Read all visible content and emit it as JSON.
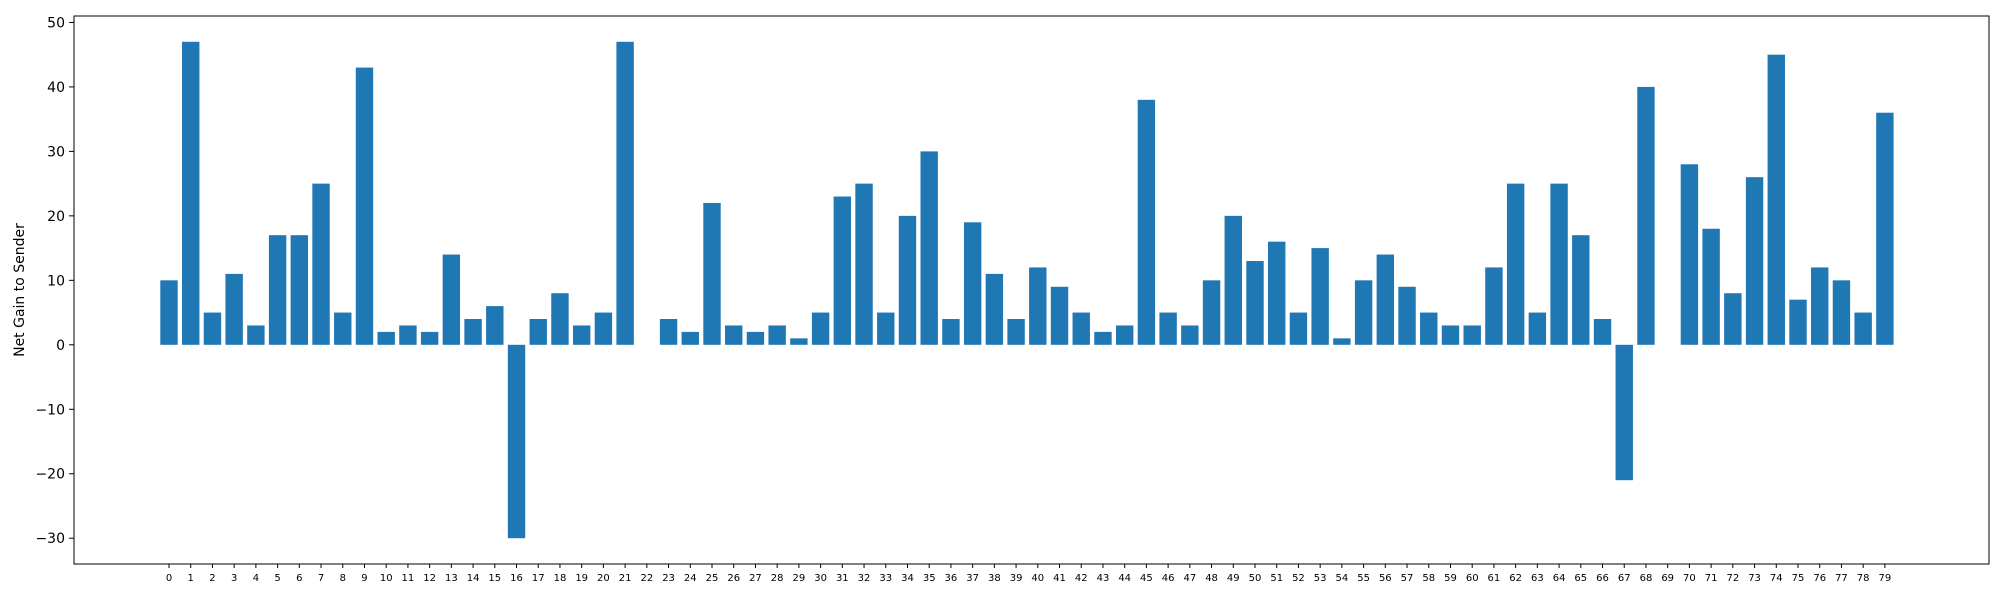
{
  "chart_data": {
    "type": "bar",
    "title": "",
    "xlabel": "",
    "ylabel": "Net Gain to Sender",
    "bar_color": "#1f77b4",
    "grid": false,
    "ylim": [
      -34,
      51
    ],
    "yticks": [
      -30,
      -20,
      -10,
      0,
      10,
      20,
      30,
      40,
      50
    ],
    "yticks_labels": [
      "−30",
      "−20",
      "−10",
      "0",
      "10",
      "20",
      "30",
      "40",
      "50"
    ],
    "categories": [
      "0",
      "1",
      "2",
      "3",
      "4",
      "5",
      "6",
      "7",
      "8",
      "9",
      "10",
      "11",
      "12",
      "13",
      "14",
      "15",
      "16",
      "17",
      "18",
      "19",
      "20",
      "21",
      "22",
      "23",
      "24",
      "25",
      "26",
      "27",
      "28",
      "29",
      "30",
      "31",
      "32",
      "33",
      "34",
      "35",
      "36",
      "37",
      "38",
      "39",
      "40",
      "41",
      "42",
      "43",
      "44",
      "45",
      "46",
      "47",
      "48",
      "49",
      "50",
      "51",
      "52",
      "53",
      "54",
      "55",
      "56",
      "57",
      "58",
      "59",
      "60",
      "61",
      "62",
      "63",
      "64",
      "65",
      "66",
      "67",
      "68",
      "69",
      "70",
      "71",
      "72",
      "73",
      "74",
      "75",
      "76",
      "77",
      "78",
      "79"
    ],
    "values": [
      10,
      47,
      5,
      11,
      3,
      17,
      17,
      25,
      5,
      43,
      2,
      3,
      2,
      14,
      4,
      6,
      -30,
      4,
      8,
      3,
      5,
      47,
      0,
      4,
      2,
      22,
      3,
      2,
      3,
      1,
      5,
      23,
      25,
      5,
      20,
      30,
      4,
      19,
      11,
      4,
      12,
      9,
      5,
      2,
      3,
      38,
      5,
      3,
      10,
      20,
      13,
      16,
      5,
      15,
      1,
      10,
      14,
      9,
      5,
      3,
      3,
      12,
      25,
      5,
      25,
      17,
      4,
      -21,
      40,
      0,
      28,
      18,
      8,
      26,
      45,
      7,
      12,
      10,
      5,
      36
    ]
  }
}
